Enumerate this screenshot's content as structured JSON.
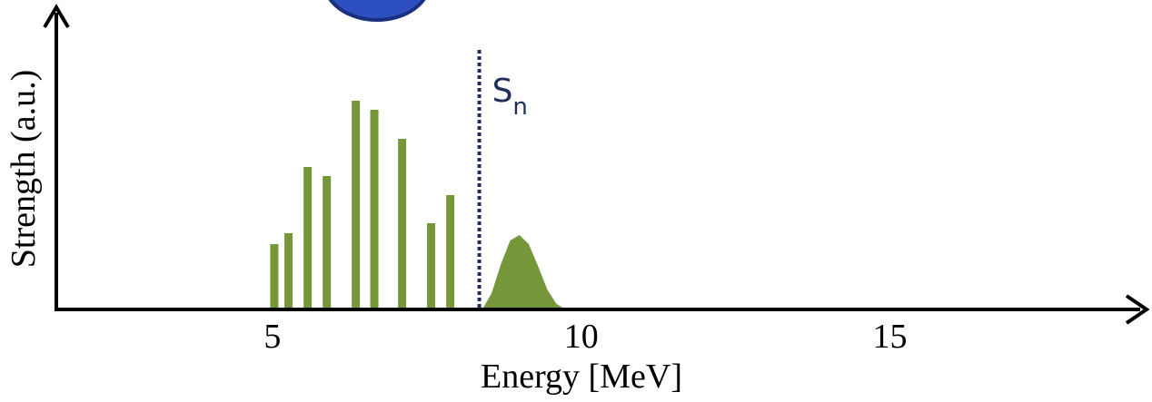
{
  "chart_data": {
    "type": "bar",
    "x_label": "Energy [MeV]",
    "y_label": "Strength (a.u.)",
    "xlim": [
      1.5,
      19.2
    ],
    "ylim": [
      0,
      333
    ],
    "xticks": [
      5,
      10,
      15
    ],
    "series": [
      {
        "type": "bar",
        "color": "#76963a",
        "x": [
          5.03,
          5.26,
          5.57,
          5.88,
          6.35,
          6.65,
          7.1,
          7.57,
          7.88
        ],
        "values": [
          72,
          84,
          157,
          147,
          230,
          220,
          188,
          95,
          126
        ]
      },
      {
        "type": "area",
        "color": "#76963a",
        "x": [
          8.4,
          8.55,
          8.7,
          8.85,
          9.0,
          9.15,
          9.3,
          9.45,
          9.6,
          9.75
        ],
        "values": [
          0,
          18,
          50,
          76,
          82,
          72,
          48,
          22,
          6,
          0
        ]
      }
    ],
    "threshold": {
      "x": 8.35,
      "label": "S",
      "label_sub": "n",
      "color": "#1f2d5a"
    }
  }
}
